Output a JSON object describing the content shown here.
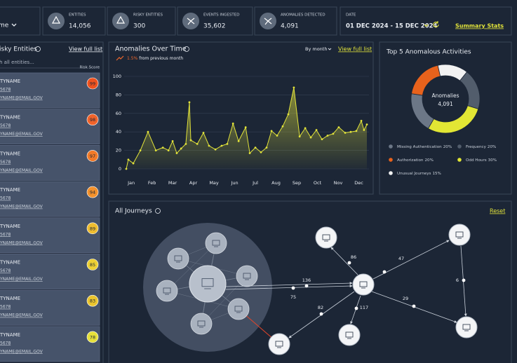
{
  "header": {
    "view": "me",
    "stats": [
      {
        "label": "ENTITIES",
        "value": "14,056"
      },
      {
        "label": "RISKY ENTITIES",
        "value": "300"
      },
      {
        "label": "EVENTS INGESTED",
        "value": "35,602"
      },
      {
        "label": "ANOMALIES DETECTED",
        "value": "4,091"
      }
    ],
    "date_label": "DATE",
    "date": "01 DEC 2024 - 15 DEC 2024",
    "summary_link": "Summary Stats"
  },
  "entities_panel": {
    "title": "isky Entities",
    "link": "View full list",
    "search": "h all entities...",
    "column": "Risk Score",
    "items": [
      {
        "name": "TYNAME",
        "id": "5678",
        "email": "YNAME@EMAIL.GOV",
        "score": 99,
        "color": "#f0521e"
      },
      {
        "name": "TYNAME",
        "id": "5678",
        "email": "YNAME@EMAIL.GOV",
        "score": 98,
        "color": "#f1632a"
      },
      {
        "name": "TYNAME",
        "id": "5678",
        "email": "YNAME@EMAIL.GOV",
        "score": 97,
        "color": "#f27a28"
      },
      {
        "name": "TYNAME",
        "id": "5678",
        "email": "YNAME@EMAIL.GOV",
        "score": 94,
        "color": "#f3912c"
      },
      {
        "name": "TYNAME",
        "id": "5678",
        "email": "YNAME@EMAIL.GOV",
        "score": 89,
        "color": "#efbd30"
      },
      {
        "name": "TYNAME",
        "id": "5678",
        "email": "YNAME@EMAIL.GOV",
        "score": 85,
        "color": "#eed134"
      },
      {
        "name": "TYNAME",
        "id": "5678",
        "email": "YNAME@EMAIL.GOV",
        "score": 83,
        "color": "#ebc52f"
      },
      {
        "name": "TYNAME",
        "id": "5678",
        "email": "YNAME@EMAIL.GOV",
        "score": 78,
        "color": "#e6e03a"
      }
    ]
  },
  "chart_data": [
    {
      "type": "line",
      "title": "Anomalies Over Time",
      "change": "1.5%",
      "change_text": "from previous month",
      "control": "By month",
      "link": "View full list",
      "color": "#e2e33a",
      "grid": true,
      "x": [
        -0.24,
        -0.14,
        0.1,
        0.44,
        0.81,
        1.19,
        1.53,
        1.8,
        2.0,
        2.2,
        2.41,
        2.64,
        2.81,
        2.88,
        3.19,
        3.49,
        3.76,
        4.07,
        4.37,
        4.64,
        4.92,
        5.19,
        5.53,
        5.73,
        6.0,
        6.27,
        6.54,
        6.78,
        7.05,
        7.32,
        7.59,
        7.86,
        8.14,
        8.41,
        8.68,
        8.95,
        9.22,
        9.49,
        9.76,
        10.03,
        10.34,
        10.61,
        10.88,
        11.12,
        11.25,
        11.39
      ],
      "values": [
        0,
        10,
        6,
        20,
        40,
        20,
        23,
        20,
        30,
        17,
        22,
        27,
        72,
        31,
        27,
        39,
        25,
        21,
        25,
        27,
        49,
        30,
        45,
        17,
        23,
        18,
        23,
        41,
        36,
        46,
        59,
        88,
        35,
        44,
        34,
        42,
        32,
        36,
        38,
        45,
        39,
        40,
        41,
        52,
        42,
        48
      ],
      "xlim": [
        -0.24,
        11.39
      ],
      "xticks": [
        {
          "value": 0,
          "label": "Jan"
        },
        {
          "value": 1,
          "label": "Feb"
        },
        {
          "value": 2,
          "label": "Mar"
        },
        {
          "value": 3,
          "label": "Apr"
        },
        {
          "value": 4,
          "label": "May"
        },
        {
          "value": 5,
          "label": "Jun"
        },
        {
          "value": 6,
          "label": "Jul"
        },
        {
          "value": 7,
          "label": "Aug"
        },
        {
          "value": 8,
          "label": "Sep"
        },
        {
          "value": 9,
          "label": "Oct"
        },
        {
          "value": 10,
          "label": "Nov"
        },
        {
          "value": 11,
          "label": "Dec"
        }
      ],
      "ylim": [
        0,
        100
      ],
      "yticks": [
        0,
        20,
        40,
        60,
        80,
        100
      ]
    },
    {
      "type": "pie",
      "title": "Top 5 Anomalous Activities",
      "center_label": "Anomalies",
      "center_value": "4,091",
      "categories": [
        "Missing Authentication",
        "Authorization",
        "Unusual Journeys",
        "Frequency",
        "Odd Hours"
      ],
      "values": [
        20,
        20,
        15,
        20,
        30
      ],
      "value_labels": [
        "20%",
        "20%",
        "15%",
        "20%",
        "30%"
      ],
      "colors": [
        "#6c7787",
        "#e8621c",
        "#f2f2f2",
        "#525d6c",
        "#e2e634"
      ]
    }
  ],
  "journeys": {
    "title": "All Journeys",
    "reset": "Reset",
    "edge_labels": [
      136,
      75,
      86,
      47,
      6,
      29,
      82,
      117
    ]
  }
}
